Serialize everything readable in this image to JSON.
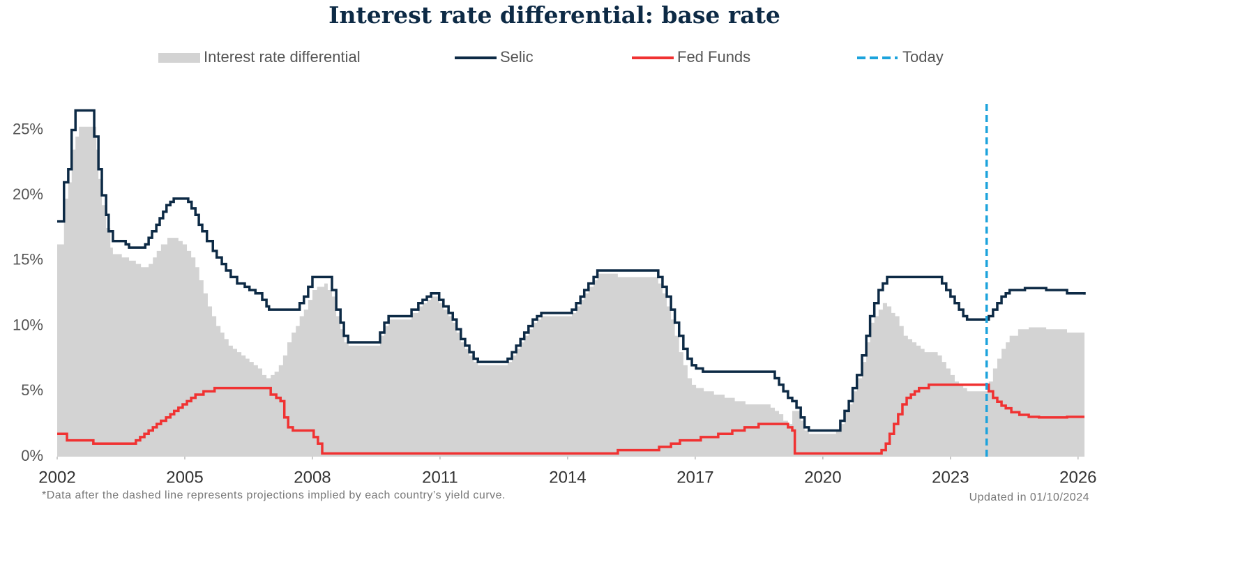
{
  "chart_data": {
    "type": "line",
    "title": "Interest rate differential: base rate",
    "footnote": "*Data after the dashed line represents projections implied by each country’s yield curve.",
    "updated": "Updated in 01/10/2024",
    "xlim": [
      2002,
      2026.15
    ],
    "xticks": [
      2002,
      2005,
      2008,
      2011,
      2014,
      2017,
      2020,
      2023,
      2026
    ],
    "ylim": [
      0,
      27
    ],
    "yticks": [
      {
        "value": 0,
        "label": "0%"
      },
      {
        "value": 5,
        "label": "5%"
      },
      {
        "value": 10,
        "label": "10%"
      },
      {
        "value": 15,
        "label": "15%"
      },
      {
        "value": 20,
        "label": "20%"
      },
      {
        "value": 25,
        "label": "25%"
      }
    ],
    "step": true,
    "series": [
      {
        "name": "Interest rate differential",
        "color": "#d3d3d3",
        "kind": "area",
        "x": [
          2002.0,
          2002.16,
          2002.26,
          2002.34,
          2002.43,
          2002.51,
          2002.92,
          2002.97,
          2003.05,
          2003.15,
          2003.25,
          2003.31,
          2003.52,
          2003.69,
          2003.85,
          2003.97,
          2004.15,
          2004.25,
          2004.34,
          2004.44,
          2004.59,
          2004.85,
          2004.95,
          2005.05,
          2005.15,
          2005.25,
          2005.34,
          2005.44,
          2005.54,
          2005.64,
          2005.74,
          2005.84,
          2005.93,
          2006.03,
          2006.13,
          2006.23,
          2006.33,
          2006.43,
          2006.52,
          2006.62,
          2006.72,
          2006.82,
          2006.92,
          2007.02,
          2007.11,
          2007.21,
          2007.31,
          2007.41,
          2007.51,
          2007.61,
          2007.7,
          2007.8,
          2007.9,
          2008.0,
          2008.11,
          2008.28,
          2008.36,
          2008.46,
          2008.56,
          2008.66,
          2008.75,
          2008.85,
          2009.59,
          2009.69,
          2009.79,
          2010.33,
          2010.49,
          2010.59,
          2010.69,
          2010.79,
          2010.98,
          2011.08,
          2011.2,
          2011.3,
          2011.39,
          2011.49,
          2011.59,
          2011.69,
          2011.79,
          2011.89,
          2012.59,
          2012.69,
          2012.79,
          2012.89,
          2012.98,
          2013.08,
          2013.18,
          2013.28,
          2013.38,
          2014.1,
          2014.2,
          2014.3,
          2014.39,
          2014.49,
          2014.61,
          2014.7,
          2015.18,
          2016.13,
          2016.23,
          2016.33,
          2016.43,
          2016.52,
          2016.62,
          2016.72,
          2016.82,
          2016.92,
          2017.02,
          2017.2,
          2017.44,
          2017.69,
          2017.93,
          2018.18,
          2018.77,
          2018.87,
          2018.97,
          2019.07,
          2019.18,
          2019.28,
          2019.48,
          2019.57,
          2019.67,
          2020.31,
          2020.41,
          2020.51,
          2020.61,
          2020.7,
          2020.8,
          2020.92,
          2021.02,
          2021.11,
          2021.21,
          2021.31,
          2021.41,
          2021.51,
          2021.61,
          2021.7,
          2021.8,
          2021.9,
          2022.0,
          2022.1,
          2022.2,
          2022.3,
          2022.39,
          2022.7,
          2022.8,
          2022.9,
          2023.0,
          2023.1,
          2023.2,
          2023.3,
          2023.39,
          2023.9,
          2024.0,
          2024.1,
          2024.2,
          2024.3,
          2024.39,
          2024.59,
          2024.84,
          2025.25,
          2025.74,
          2026.15
        ],
        "values": [
          16.25,
          19.75,
          21,
          23.5,
          24.5,
          25.25,
          23.5,
          21.25,
          19.25,
          17.5,
          16,
          15.5,
          15.25,
          15,
          14.75,
          14.5,
          14.75,
          15.25,
          15.75,
          16.25,
          16.75,
          16.5,
          16.25,
          15.75,
          15.25,
          14.5,
          13.5,
          12.5,
          11.5,
          10.75,
          10,
          9.5,
          9,
          8.5,
          8.25,
          8,
          7.75,
          7.5,
          7.25,
          7,
          6.75,
          6.25,
          6,
          6.25,
          6.5,
          7,
          7.75,
          8.75,
          9.5,
          10,
          10.75,
          11.25,
          12,
          12.75,
          13,
          13.25,
          12.75,
          12.25,
          10.75,
          9.75,
          8.75,
          8.5,
          9.25,
          10,
          10.5,
          11,
          11.5,
          11.75,
          12,
          12.25,
          11.75,
          11.25,
          10.75,
          10.25,
          9.5,
          8.75,
          8.25,
          7.75,
          7.25,
          7,
          7.25,
          7.75,
          8.25,
          8.75,
          9.25,
          9.75,
          10.25,
          10.5,
          10.75,
          11,
          11.5,
          12,
          12.5,
          13,
          13.5,
          14,
          13.75,
          13.25,
          12.5,
          11.5,
          10.5,
          9.25,
          8,
          7,
          6,
          5.5,
          5.25,
          5,
          4.75,
          4.5,
          4.25,
          4,
          3.75,
          3.5,
          3.25,
          2.75,
          2.5,
          3.5,
          2.75,
          2,
          1.75,
          2,
          2.5,
          3.5,
          4,
          5,
          6,
          7.25,
          8.75,
          10.25,
          10.75,
          11.25,
          11.75,
          11.5,
          11,
          10.75,
          10,
          9.25,
          9,
          8.75,
          8.5,
          8.25,
          8,
          7.75,
          7.25,
          6.75,
          6.25,
          5.75,
          5.5,
          5.25,
          5,
          5.75,
          6.75,
          7.5,
          8.25,
          8.75,
          9.25,
          9.75,
          9.9,
          9.75,
          9.5,
          9.4
        ]
      },
      {
        "name": "Selic",
        "color": "#0d2a45",
        "kind": "line",
        "x": [
          2002.0,
          2002.16,
          2002.26,
          2002.34,
          2002.43,
          2002.87,
          2002.97,
          2003.05,
          2003.15,
          2003.21,
          2003.31,
          2003.61,
          2003.69,
          2004.07,
          2004.15,
          2004.23,
          2004.33,
          2004.41,
          2004.49,
          2004.57,
          2004.66,
          2004.74,
          2005.08,
          2005.16,
          2005.25,
          2005.33,
          2005.41,
          2005.52,
          2005.66,
          2005.75,
          2005.87,
          2005.97,
          2006.08,
          2006.23,
          2006.41,
          2006.52,
          2006.66,
          2006.82,
          2006.92,
          2006.98,
          2007.7,
          2007.8,
          2007.9,
          2008.0,
          2008.46,
          2008.56,
          2008.66,
          2008.74,
          2008.84,
          2009.59,
          2009.69,
          2009.79,
          2010.33,
          2010.49,
          2010.59,
          2010.69,
          2010.79,
          2010.98,
          2011.08,
          2011.2,
          2011.3,
          2011.39,
          2011.49,
          2011.59,
          2011.69,
          2011.79,
          2011.89,
          2012.59,
          2012.69,
          2012.79,
          2012.89,
          2012.98,
          2013.08,
          2013.18,
          2013.28,
          2013.38,
          2014.1,
          2014.2,
          2014.3,
          2014.39,
          2014.49,
          2014.61,
          2014.7,
          2016.13,
          2016.23,
          2016.33,
          2016.43,
          2016.52,
          2016.62,
          2016.72,
          2016.82,
          2016.92,
          2017.02,
          2017.18,
          2018.87,
          2018.97,
          2019.07,
          2019.18,
          2019.28,
          2019.38,
          2019.48,
          2019.57,
          2019.67,
          2020.41,
          2020.51,
          2020.61,
          2020.7,
          2020.8,
          2020.92,
          2021.02,
          2021.11,
          2021.21,
          2021.31,
          2021.41,
          2021.51,
          2022.8,
          2022.9,
          2023.0,
          2023.1,
          2023.2,
          2023.3,
          2023.39,
          2023.9,
          2024.0,
          2024.1,
          2024.2,
          2024.3,
          2024.39,
          2024.75,
          2025.25,
          2025.74,
          2026.15
        ],
        "values": [
          18,
          21,
          22,
          25,
          26.5,
          24.5,
          22,
          20,
          18.5,
          17.25,
          16.5,
          16.25,
          16,
          16.25,
          16.75,
          17.25,
          17.75,
          18.25,
          18.75,
          19.25,
          19.5,
          19.75,
          19.5,
          19,
          18.5,
          17.75,
          17.25,
          16.5,
          15.75,
          15.25,
          14.75,
          14.25,
          13.75,
          13.25,
          13,
          12.75,
          12.5,
          12,
          11.5,
          11.25,
          11.75,
          12.25,
          13,
          13.75,
          12.75,
          11.25,
          10.25,
          9.25,
          8.75,
          9.5,
          10.25,
          10.75,
          11.25,
          11.75,
          12,
          12.25,
          12.5,
          12,
          11.5,
          11,
          10.5,
          9.75,
          9,
          8.5,
          8,
          7.5,
          7.25,
          7.5,
          8,
          8.5,
          9,
          9.5,
          10,
          10.5,
          10.75,
          11,
          11.25,
          11.75,
          12.25,
          12.75,
          13.25,
          13.75,
          14.25,
          13.75,
          13,
          12.25,
          11.25,
          10.25,
          9.25,
          8.25,
          7.5,
          7,
          6.75,
          6.5,
          6,
          5.5,
          5,
          4.5,
          4.25,
          3.75,
          3,
          2.25,
          2,
          2.75,
          3.5,
          4.25,
          5.25,
          6.25,
          7.75,
          9.25,
          10.75,
          11.75,
          12.75,
          13.25,
          13.75,
          13.25,
          12.75,
          12.25,
          11.75,
          11.25,
          10.75,
          10.5,
          10.75,
          11.25,
          11.75,
          12.25,
          12.5,
          12.75,
          12.9,
          12.75,
          12.5,
          12.4
        ]
      },
      {
        "name": "Fed Funds",
        "color": "#f03232",
        "kind": "line",
        "x": [
          2002.0,
          2002.23,
          2002.85,
          2003.85,
          2003.95,
          2004.05,
          2004.15,
          2004.25,
          2004.34,
          2004.44,
          2004.56,
          2004.66,
          2004.75,
          2004.85,
          2004.95,
          2005.05,
          2005.15,
          2005.25,
          2005.44,
          2005.7,
          2007.02,
          2007.15,
          2007.25,
          2007.34,
          2007.43,
          2007.54,
          2008.03,
          2008.13,
          2008.23,
          2015.18,
          2016.15,
          2016.43,
          2016.64,
          2017.13,
          2017.54,
          2017.87,
          2018.16,
          2018.49,
          2019.18,
          2019.28,
          2019.34,
          2021.38,
          2021.48,
          2021.57,
          2021.67,
          2021.77,
          2021.87,
          2021.97,
          2022.07,
          2022.16,
          2022.26,
          2022.49,
          2023.9,
          2024.0,
          2024.1,
          2024.2,
          2024.3,
          2024.43,
          2024.62,
          2024.84,
          2025.08,
          2025.74,
          2026.15
        ],
        "values": [
          1.75,
          1.25,
          1,
          1.25,
          1.5,
          1.75,
          2,
          2.25,
          2.5,
          2.75,
          3,
          3.25,
          3.5,
          3.75,
          4,
          4.25,
          4.5,
          4.75,
          5,
          5.25,
          4.75,
          4.5,
          4.25,
          3,
          2.25,
          2,
          1.5,
          1,
          0.25,
          0.5,
          0.75,
          1,
          1.25,
          1.5,
          1.75,
          2,
          2.25,
          2.5,
          2.25,
          2,
          0.25,
          0.5,
          1,
          1.75,
          2.5,
          3.25,
          4,
          4.5,
          4.75,
          5,
          5.25,
          5.5,
          5,
          4.5,
          4.2,
          3.9,
          3.7,
          3.4,
          3.2,
          3.05,
          3,
          3.05,
          3.05
        ]
      },
      {
        "name": "Today",
        "color": "#1ca3dc",
        "kind": "vline",
        "x": 2023.85
      }
    ]
  }
}
